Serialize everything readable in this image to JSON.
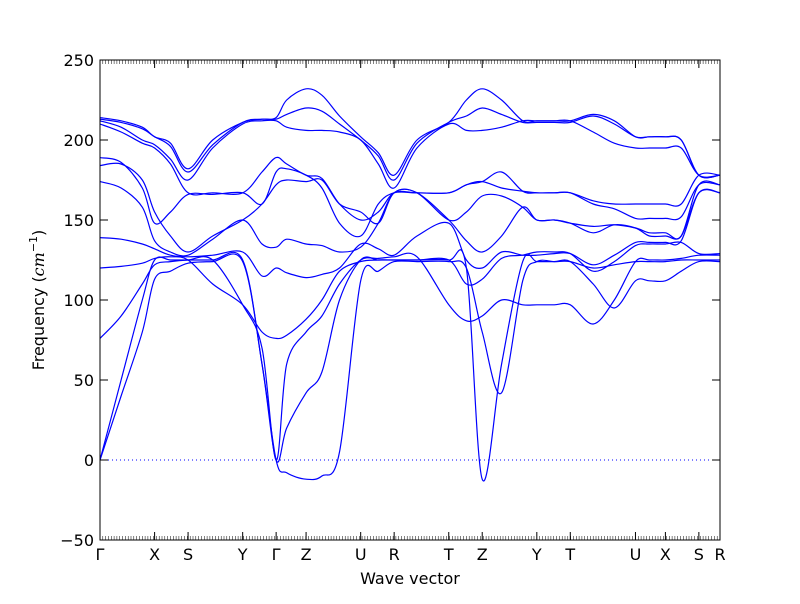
{
  "chart_data": {
    "type": "line",
    "xlabel": "Wave vector",
    "ylabel_text": "Frequency (",
    "ylabel_unit": "cm",
    "ylabel_exp": "−1",
    "ylabel_close": ")",
    "ylim": [
      -50,
      250
    ],
    "yticks": [
      -50,
      0,
      50,
      100,
      150,
      200,
      250
    ],
    "xlim": [
      0,
      17.6
    ],
    "high_symmetry_points": [
      {
        "label": "Γ",
        "x": 0.0
      },
      {
        "label": "X",
        "x": 1.55
      },
      {
        "label": "S",
        "x": 2.5
      },
      {
        "label": "Y",
        "x": 4.05
      },
      {
        "label": "Γ",
        "x": 5.0
      },
      {
        "label": "Z",
        "x": 5.85
      },
      {
        "label": "U",
        "x": 7.4
      },
      {
        "label": "R",
        "x": 8.35
      },
      {
        "label": "T",
        "x": 9.9
      },
      {
        "label": "Z",
        "x": 10.85
      },
      {
        "label": "Y",
        "x": 12.4
      },
      {
        "label": "T",
        "x": 13.35
      },
      {
        "label": "U",
        "x": 15.2
      },
      {
        "label": "X",
        "x": 16.05
      },
      {
        "label": "S",
        "x": 17.0
      },
      {
        "label": "R",
        "x": 17.6
      }
    ],
    "zero_line": 0,
    "line_color": "#0000ff",
    "bands": [
      {
        "x": [
          0,
          0.6,
          1.2,
          1.55,
          2.0,
          2.5,
          3.2,
          4.05,
          4.6,
          5.0,
          5.3,
          5.85,
          6.3,
          6.8,
          7.4,
          7.9,
          8.35,
          9.0,
          9.9,
          10.4,
          10.85,
          11.4,
          12.0,
          12.4,
          12.9,
          13.35,
          14.0,
          14.6,
          15.2,
          15.6,
          16.05,
          16.5,
          17.0,
          17.6
        ],
        "y": [
          0,
          40,
          80,
          113,
          118,
          123,
          124,
          124,
          60,
          0,
          -8,
          -12,
          -10,
          5,
          112,
          118,
          124,
          124,
          124,
          120,
          80,
          42,
          112,
          124,
          124,
          124,
          110,
          95,
          112,
          112,
          112,
          118,
          124,
          124
        ]
      },
      {
        "x": [
          0,
          0.6,
          1.2,
          1.55,
          2.0,
          2.5,
          3.2,
          4.05,
          4.6,
          5.0,
          5.3,
          5.85,
          6.3,
          6.8,
          7.4,
          7.9,
          8.35,
          9.0,
          9.9,
          10.4,
          10.85,
          11.4,
          12.0,
          12.4,
          12.9,
          13.35,
          14.0,
          14.6,
          15.2,
          15.6,
          16.05,
          16.5,
          17.0,
          17.6
        ],
        "y": [
          0,
          50,
          100,
          125,
          125,
          125,
          125,
          125,
          60,
          0,
          20,
          42,
          55,
          100,
          125,
          125,
          125,
          125,
          125,
          120,
          -12,
          60,
          124,
          124,
          124,
          124,
          120,
          122,
          124,
          124,
          124,
          125,
          125,
          125
        ]
      },
      {
        "x": [
          0,
          0.6,
          1.2,
          1.55,
          2.0,
          2.5,
          3.2,
          4.05,
          4.6,
          5.0,
          5.3,
          5.85,
          6.3,
          6.8,
          7.4,
          7.9,
          8.35,
          9.0,
          9.9,
          10.4,
          10.85,
          11.4,
          12.0,
          12.4,
          12.9,
          13.35,
          14.0,
          14.6,
          15.2,
          15.6,
          16.05,
          16.5,
          17.0,
          17.6
        ],
        "y": [
          76,
          90,
          110,
          122,
          124,
          125,
          125,
          97,
          70,
          0,
          60,
          80,
          90,
          110,
          125,
          126,
          127,
          127,
          97,
          87,
          90,
          100,
          97,
          97,
          97,
          97,
          85,
          100,
          124,
          125,
          125,
          126,
          128,
          128
        ]
      },
      {
        "x": [
          0,
          0.6,
          1.2,
          1.55,
          2.0,
          2.5,
          3.2,
          4.05,
          4.6,
          5.0,
          5.3,
          5.85,
          6.3,
          6.8,
          7.4,
          7.9,
          8.35,
          9.0,
          9.9,
          10.4,
          10.85,
          11.4,
          12.0,
          12.4,
          12.9,
          13.35,
          14.0,
          14.6,
          15.2,
          15.6,
          16.05,
          16.5,
          17.0,
          17.6
        ],
        "y": [
          120,
          121,
          123,
          126,
          127,
          125,
          110,
          97,
          80,
          76,
          78,
          88,
          100,
          118,
          124,
          125,
          125,
          125,
          125,
          110,
          113,
          126,
          128,
          130,
          130,
          129,
          118,
          124,
          134,
          135,
          135,
          136,
          129,
          129
        ]
      },
      {
        "x": [
          0,
          0.6,
          1.2,
          1.55,
          2.0,
          2.5,
          3.2,
          4.05,
          4.6,
          5.0,
          5.3,
          5.85,
          6.3,
          6.8,
          7.4,
          7.9,
          8.35,
          9.0,
          9.9,
          10.4,
          10.85,
          11.4,
          12.0,
          12.4,
          12.9,
          13.35,
          14.0,
          14.6,
          15.2,
          15.6,
          16.05,
          16.5,
          17.0,
          17.6
        ],
        "y": [
          139,
          138,
          135,
          132,
          128,
          127,
          128,
          130,
          115,
          120,
          117,
          114,
          116,
          120,
          135,
          132,
          128,
          140,
          148,
          125,
          120,
          130,
          128,
          128,
          129,
          129,
          122,
          128,
          136,
          136,
          136,
          137,
          167,
          167
        ]
      },
      {
        "x": [
          0,
          0.6,
          1.2,
          1.55,
          2.0,
          2.5,
          3.2,
          4.05,
          4.6,
          5.0,
          5.3,
          5.85,
          6.3,
          6.8,
          7.4,
          7.9,
          8.35,
          9.0,
          9.9,
          10.4,
          10.85,
          11.4,
          12.0,
          12.4,
          12.9,
          13.35,
          14.0,
          14.6,
          15.2,
          15.6,
          16.05,
          16.5,
          17.0,
          17.6
        ],
        "y": [
          174,
          170,
          158,
          137,
          130,
          128,
          138,
          150,
          135,
          133,
          138,
          135,
          134,
          130,
          133,
          148,
          167,
          167,
          150,
          137,
          130,
          140,
          158,
          150,
          150,
          148,
          142,
          147,
          145,
          140,
          140,
          140,
          167,
          167
        ]
      },
      {
        "x": [
          0,
          0.6,
          1.2,
          1.55,
          2.0,
          2.5,
          3.2,
          4.05,
          4.6,
          5.0,
          5.3,
          5.85,
          6.3,
          6.8,
          7.4,
          7.9,
          8.35,
          9.0,
          9.9,
          10.4,
          10.85,
          11.4,
          12.0,
          12.4,
          12.9,
          13.35,
          14.0,
          14.6,
          15.2,
          15.6,
          16.05,
          16.5,
          17.0,
          17.6
        ],
        "y": [
          184,
          185,
          175,
          155,
          140,
          130,
          140,
          150,
          160,
          172,
          175,
          174,
          175,
          160,
          155,
          148,
          167,
          167,
          150,
          155,
          165,
          165,
          158,
          150,
          150,
          148,
          146,
          147,
          145,
          142,
          142,
          140,
          172,
          172
        ]
      },
      {
        "x": [
          0,
          0.6,
          1.2,
          1.55,
          2.0,
          2.5,
          3.2,
          4.05,
          4.6,
          5.0,
          5.3,
          5.85,
          6.3,
          6.8,
          7.4,
          7.9,
          8.35,
          9.0,
          9.9,
          10.4,
          10.85,
          11.4,
          12.0,
          12.4,
          12.9,
          13.35,
          14.0,
          14.6,
          15.2,
          15.6,
          16.05,
          16.5,
          17.0,
          17.6
        ],
        "y": [
          189,
          186,
          170,
          148,
          155,
          166,
          166,
          167,
          160,
          180,
          182,
          178,
          170,
          148,
          140,
          160,
          167,
          167,
          167,
          172,
          174,
          170,
          168,
          167,
          167,
          167,
          160,
          157,
          151,
          151,
          151,
          152,
          172,
          172
        ]
      },
      {
        "x": [
          0,
          0.6,
          1.2,
          1.55,
          2.0,
          2.5,
          3.2,
          4.05,
          4.6,
          5.0,
          5.3,
          5.85,
          6.3,
          6.8,
          7.4,
          7.9,
          8.35,
          9.0,
          9.9,
          10.4,
          10.85,
          11.4,
          12.0,
          12.4,
          12.9,
          13.35,
          14.0,
          14.6,
          15.2,
          15.6,
          16.05,
          16.5,
          17.0,
          17.6
        ],
        "y": [
          210,
          205,
          198,
          195,
          185,
          167,
          167,
          167,
          180,
          189,
          185,
          178,
          176,
          160,
          150,
          155,
          167,
          167,
          167,
          172,
          174,
          180,
          168,
          167,
          167,
          167,
          162,
          160,
          160,
          160,
          160,
          160,
          178,
          178
        ]
      },
      {
        "x": [
          0,
          0.6,
          1.2,
          1.55,
          2.0,
          2.5,
          3.2,
          4.05,
          4.6,
          5.0,
          5.3,
          5.85,
          6.3,
          6.8,
          7.4,
          7.9,
          8.35,
          9.0,
          9.9,
          10.4,
          10.85,
          11.4,
          12.0,
          12.4,
          12.9,
          13.35,
          14.0,
          14.6,
          15.2,
          15.6,
          16.05,
          16.5,
          17.0,
          17.6
        ],
        "y": [
          212,
          208,
          200,
          197,
          188,
          175,
          195,
          210,
          212,
          212,
          208,
          206,
          206,
          205,
          200,
          185,
          170,
          195,
          210,
          206,
          206,
          208,
          212,
          212,
          212,
          212,
          205,
          198,
          195,
          195,
          195,
          195,
          178,
          178
        ]
      },
      {
        "x": [
          0,
          0.6,
          1.2,
          1.55,
          2.0,
          2.5,
          3.2,
          4.05,
          4.6,
          5.0,
          5.3,
          5.85,
          6.3,
          6.8,
          7.4,
          7.9,
          8.35,
          9.0,
          9.9,
          10.4,
          10.85,
          11.4,
          12.0,
          12.4,
          12.9,
          13.35,
          14.0,
          14.6,
          15.2,
          15.6,
          16.05,
          16.5,
          17.0,
          17.6
        ],
        "y": [
          213,
          211,
          207,
          202,
          196,
          180,
          197,
          211,
          213,
          213,
          216,
          220,
          218,
          210,
          200,
          190,
          175,
          198,
          211,
          215,
          220,
          216,
          211,
          211,
          211,
          211,
          215,
          210,
          202,
          202,
          202,
          200,
          178,
          178
        ]
      },
      {
        "x": [
          0,
          0.6,
          1.2,
          1.55,
          2.0,
          2.5,
          3.2,
          4.05,
          4.6,
          5.0,
          5.3,
          5.85,
          6.3,
          6.8,
          7.4,
          7.9,
          8.35,
          9.0,
          9.9,
          10.4,
          10.85,
          11.4,
          12.0,
          12.4,
          12.9,
          13.35,
          14.0,
          14.6,
          15.2,
          15.6,
          16.05,
          16.5,
          17.0,
          17.6
        ],
        "y": [
          214,
          212,
          208,
          202,
          198,
          182,
          200,
          211,
          213,
          214,
          225,
          232,
          228,
          215,
          202,
          192,
          178,
          200,
          211,
          225,
          232,
          225,
          212,
          212,
          212,
          212,
          216,
          212,
          202,
          202,
          202,
          200,
          178,
          178
        ]
      }
    ]
  }
}
